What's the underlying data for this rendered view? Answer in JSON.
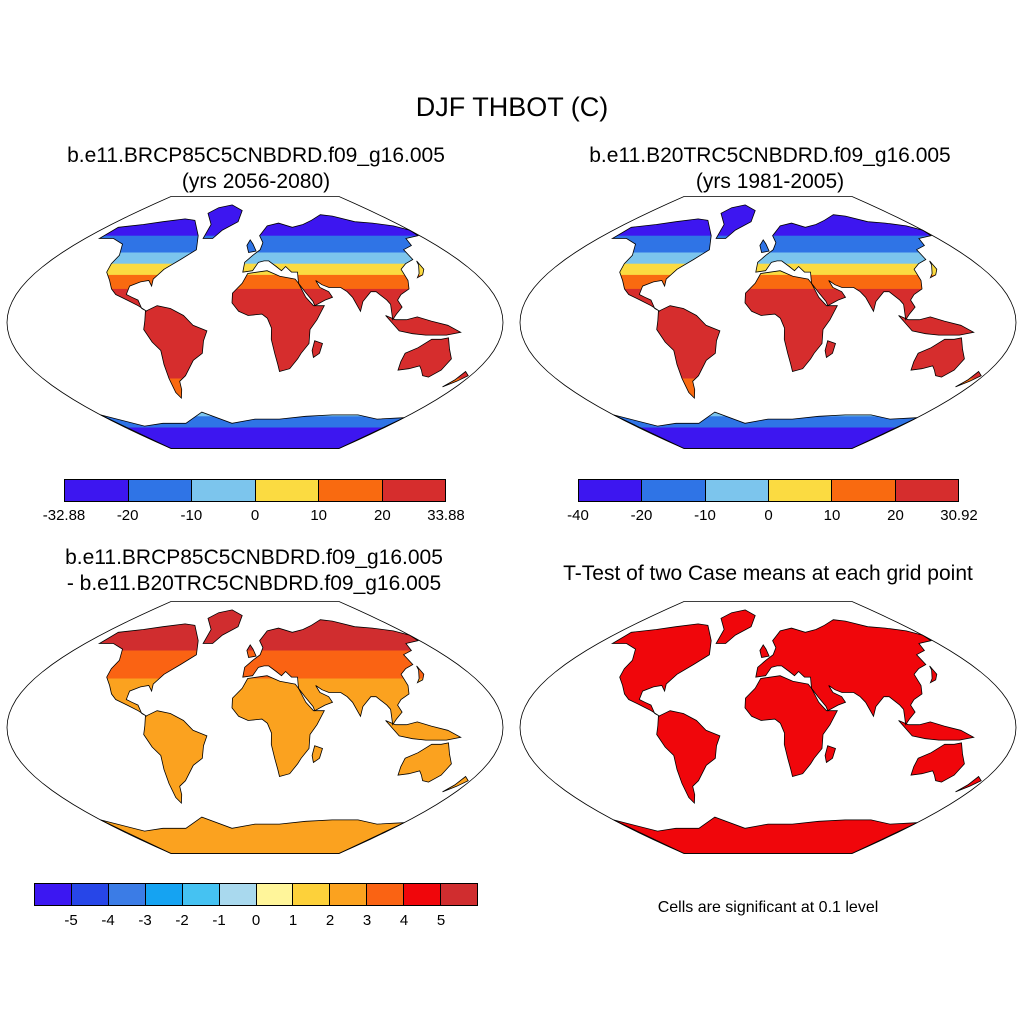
{
  "title": "DJF THBOT (C)",
  "panels": [
    {
      "id": "case1",
      "title_lines": [
        "b.e11.BRCP85C5CNBDRD.f09_g16.005",
        "(yrs 2056-2080)"
      ],
      "colorbar": {
        "colors": [
          "#3d16f0",
          "#2f74e6",
          "#7cc5ed",
          "#fbdb41",
          "#f96a10",
          "#d62d2d"
        ],
        "tick_labels": [
          "-32.88",
          "-20",
          "-10",
          "0",
          "10",
          "20",
          "33.88"
        ]
      }
    },
    {
      "id": "case2",
      "title_lines": [
        "b.e11.B20TRC5CNBDRD.f09_g16.005",
        "(yrs 1981-2005)"
      ],
      "colorbar": {
        "colors": [
          "#3d16f0",
          "#2f74e6",
          "#7cc5ed",
          "#fbdb41",
          "#f96a10",
          "#d62d2d"
        ],
        "tick_labels": [
          "-40",
          "-20",
          "-10",
          "0",
          "10",
          "20",
          "30.92"
        ]
      }
    },
    {
      "id": "difference",
      "title_lines": [
        "b.e11.BRCP85C5CNBDRD.f09_g16.005",
        "- b.e11.B20TRC5CNBDRD.f09_g16.005"
      ],
      "colorbar": {
        "colors": [
          "#3c17f2",
          "#2746e8",
          "#3b7ce6",
          "#15a3f2",
          "#45c2f2",
          "#a9d9ee",
          "#fff59a",
          "#fdd13a",
          "#fba21f",
          "#fa6313",
          "#f0060b",
          "#d02d2f"
        ],
        "tick_labels": [
          "-5",
          "-4",
          "-3",
          "-2",
          "-1",
          "0",
          "1",
          "2",
          "3",
          "4",
          "5"
        ]
      }
    },
    {
      "id": "ttest",
      "title_lines": [
        "T-Test of two Case means at each grid point"
      ],
      "note": "Cells are significant at 0.1 level"
    }
  ],
  "map_colors": {
    "case_future": {
      "high_arctic": "#3d16f0",
      "subarctic": "#2f74e6",
      "cool": "#7cc5ed",
      "mild": "#fbdb41",
      "warm": "#f96a10",
      "hot": "#d62d2d"
    },
    "case_past": {
      "high_arctic": "#3d16f0",
      "subarctic": "#2f74e6",
      "cool": "#7cc5ed",
      "mild": "#fbdb41",
      "warm": "#f96a10",
      "hot": "#d62d2d"
    },
    "difference": {
      "polar": "#d02d2f",
      "north": "#fa6313",
      "mid": "#fba21f",
      "tropics": "#fba21f",
      "south": "#fba21f"
    },
    "ttest": {
      "significant": "#f0060b"
    }
  }
}
